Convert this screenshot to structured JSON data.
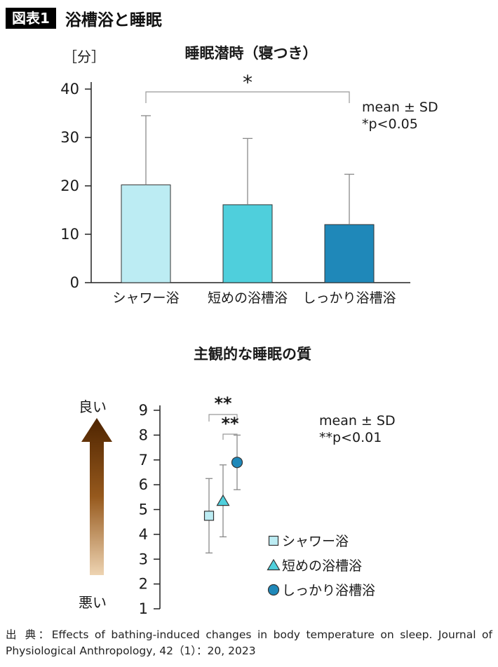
{
  "header": {
    "badge": "図表1",
    "title": "浴槽浴と睡眠"
  },
  "chart_data": [
    {
      "type": "bar",
      "title": "睡眠潜時（寝つき）",
      "unit_label": "［分］",
      "categories": [
        "シャワー浴",
        "短めの浴槽浴",
        "しっかり浴槽浴"
      ],
      "values": [
        20.2,
        16.1,
        12.0
      ],
      "sd_upper": [
        34.5,
        29.8,
        22.4
      ],
      "ylim": [
        0,
        40
      ],
      "yticks": [
        0,
        10,
        20,
        30,
        40
      ],
      "bar_colors": [
        "#bcecf3",
        "#4fcfdc",
        "#1f88b9"
      ],
      "grid": false,
      "significance": {
        "label": "*",
        "from": 0,
        "to": 2
      },
      "annotation": [
        "mean ± SD",
        "*p<0.05"
      ]
    },
    {
      "type": "scatter",
      "title": "主観的な睡眠の質",
      "ylim": [
        1,
        9
      ],
      "yticks": [
        1,
        2,
        3,
        4,
        5,
        6,
        7,
        8,
        9
      ],
      "axis_arrow": {
        "top": "良い",
        "bottom": "悪い",
        "color_top": "#4e2400",
        "color_mid": "#96591d",
        "color_bottom": "#eed4b2"
      },
      "series": [
        {
          "name": "シャワー浴",
          "marker": "square",
          "color": "#bcecf3",
          "value": 4.75,
          "sd_low": 3.25,
          "sd_high": 6.25
        },
        {
          "name": "短めの浴槽浴",
          "marker": "triangle",
          "color": "#4fcfdc",
          "value": 5.35,
          "sd_low": 3.9,
          "sd_high": 6.8
        },
        {
          "name": "しっかり浴槽浴",
          "marker": "circle",
          "color": "#1f88b9",
          "value": 6.9,
          "sd_low": 5.8,
          "sd_high": 8.0
        }
      ],
      "significance": [
        {
          "label": "**",
          "from": 0,
          "to": 2
        },
        {
          "label": "**",
          "from": 1,
          "to": 2
        }
      ],
      "annotation": [
        "mean ± SD",
        "**p<0.01"
      ],
      "legend_position": "right-bottom"
    }
  ],
  "footer": {
    "source": "出 典：Effects of bathing-induced changes in body temperature on sleep. Journal of Physiological Anthropology, 42（1）：20, 2023"
  }
}
